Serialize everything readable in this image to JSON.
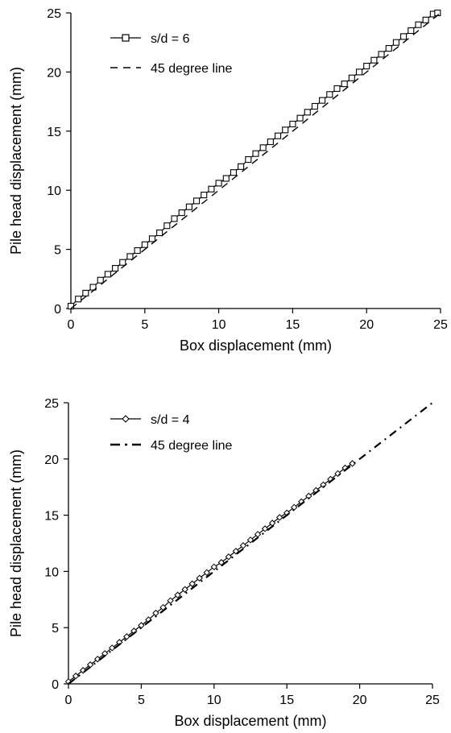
{
  "chart_data": [
    {
      "type": "line",
      "xlabel": "Box displacement (mm)",
      "ylabel": "Pile head displacement (mm)",
      "xlim": [
        0,
        25
      ],
      "ylim": [
        0,
        25
      ],
      "xticks": [
        "0",
        "5",
        "10",
        "15",
        "20",
        "25"
      ],
      "yticks": [
        "0",
        "5",
        "10",
        "15",
        "20",
        "25"
      ],
      "grid": false,
      "legend_position": "top-left",
      "series": [
        {
          "name": "s/d = 6",
          "marker": "square",
          "line": "solid",
          "x": [
            0,
            0.5,
            1,
            1.5,
            2,
            2.5,
            3,
            3.5,
            4,
            4.5,
            5,
            5.5,
            6,
            6.5,
            7,
            7.5,
            8,
            8.5,
            9,
            9.5,
            10,
            10.5,
            11,
            11.5,
            12,
            12.5,
            13,
            13.5,
            14,
            14.5,
            15,
            15.5,
            16,
            16.5,
            17,
            17.5,
            18,
            18.5,
            19,
            19.5,
            20,
            20.5,
            21,
            21.5,
            22,
            22.5,
            23,
            23.5,
            24,
            24.5,
            24.8
          ],
          "y": [
            0.2,
            0.8,
            1.3,
            1.8,
            2.4,
            2.9,
            3.4,
            3.9,
            4.4,
            4.9,
            5.4,
            5.9,
            6.4,
            7.0,
            7.6,
            8.1,
            8.6,
            9.1,
            9.6,
            10.1,
            10.6,
            11.0,
            11.5,
            12.0,
            12.6,
            13.1,
            13.6,
            14.1,
            14.6,
            15.1,
            15.6,
            16.1,
            16.6,
            17.1,
            17.6,
            18.1,
            18.6,
            19.0,
            19.5,
            20.0,
            20.5,
            21.0,
            21.5,
            22.0,
            22.5,
            23.0,
            23.5,
            24.0,
            24.4,
            24.9,
            25.0
          ]
        },
        {
          "name": "45 degree line",
          "marker": "none",
          "line": "dashed",
          "x": [
            0,
            25
          ],
          "y": [
            0,
            25
          ]
        }
      ]
    },
    {
      "type": "line",
      "xlabel": "Box displacement (mm)",
      "ylabel": "Pile head displacement (mm)",
      "xlim": [
        0,
        25
      ],
      "ylim": [
        0,
        25
      ],
      "xticks": [
        "0",
        "5",
        "10",
        "15",
        "20",
        "25"
      ],
      "yticks": [
        "0",
        "5",
        "10",
        "15",
        "20",
        "25"
      ],
      "grid": false,
      "legend_position": "top-left",
      "series": [
        {
          "name": "s/d = 4",
          "marker": "diamond",
          "line": "solid",
          "x": [
            0,
            0.5,
            1,
            1.5,
            2,
            2.5,
            3,
            3.5,
            4,
            4.5,
            5,
            5.5,
            6,
            6.5,
            7,
            7.5,
            8,
            8.5,
            9,
            9.5,
            10,
            10.5,
            11,
            11.5,
            12,
            12.5,
            13,
            13.5,
            14,
            14.5,
            15,
            15.5,
            16,
            16.5,
            17,
            17.5,
            18,
            18.5,
            19,
            19.5
          ],
          "y": [
            0.2,
            0.7,
            1.2,
            1.7,
            2.2,
            2.7,
            3.2,
            3.7,
            4.2,
            4.7,
            5.2,
            5.7,
            6.3,
            6.8,
            7.4,
            7.9,
            8.4,
            8.9,
            9.4,
            9.9,
            10.4,
            10.8,
            11.3,
            11.8,
            12.3,
            12.8,
            13.3,
            13.8,
            14.3,
            14.8,
            15.2,
            15.7,
            16.2,
            16.7,
            17.2,
            17.7,
            18.2,
            18.7,
            19.2,
            19.6
          ]
        },
        {
          "name": "45 degree line",
          "marker": "none",
          "line": "dashed",
          "x": [
            0,
            25
          ],
          "y": [
            0,
            25
          ]
        }
      ]
    }
  ]
}
